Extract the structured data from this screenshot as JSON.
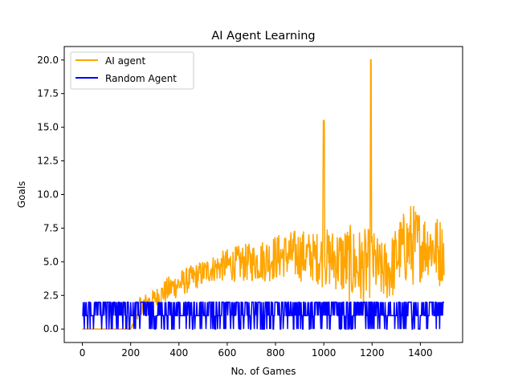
{
  "chart_data": {
    "type": "line",
    "title": "AI Agent Learning",
    "xlabel": "No. of Games",
    "ylabel": "Goals",
    "xlim": [
      -75,
      1575
    ],
    "ylim": [
      -1.0,
      21.0
    ],
    "xticks": [
      0,
      200,
      400,
      600,
      800,
      1000,
      1200,
      1400
    ],
    "yticks": [
      0.0,
      2.5,
      5.0,
      7.5,
      10.0,
      12.5,
      15.0,
      17.5,
      20.0
    ],
    "xtick_labels": [
      "0",
      "200",
      "400",
      "600",
      "800",
      "1000",
      "1200",
      "1400"
    ],
    "ytick_labels": [
      "0.0",
      "2.5",
      "5.0",
      "7.5",
      "10.0",
      "12.5",
      "15.0",
      "17.5",
      "20.0"
    ],
    "grid": false,
    "legend_position": "top-left",
    "series": [
      {
        "name": "AI agent",
        "color": "#FFA500",
        "x": [
          0,
          100,
          200,
          230,
          260,
          300,
          340,
          380,
          420,
          450,
          480,
          520,
          560,
          600,
          640,
          680,
          720,
          760,
          800,
          840,
          880,
          920,
          960,
          995,
          1000,
          1005,
          1040,
          1080,
          1120,
          1160,
          1190,
          1195,
          1200,
          1240,
          1280,
          1320,
          1360,
          1400,
          1440,
          1480,
          1499
        ],
        "y": [
          0,
          0,
          0,
          1.5,
          2.0,
          2.5,
          3.0,
          3.5,
          4.0,
          4.5,
          4.8,
          5.0,
          5.0,
          5.0,
          4.5,
          4.5,
          4.8,
          5.0,
          5.0,
          5.2,
          5.5,
          5.5,
          5.3,
          5.0,
          15.5,
          4.5,
          4.5,
          5.0,
          5.0,
          5.0,
          5.0,
          20.0,
          5.0,
          4.5,
          4.8,
          5.0,
          6.0,
          6.5,
          6.0,
          5.5,
          5.0
        ],
        "band_x": [
          200,
          240,
          300,
          360,
          420,
          480,
          540,
          600,
          660,
          720,
          780,
          840,
          900,
          960,
          1000,
          1040,
          1100,
          1160,
          1200,
          1240,
          1280,
          1320,
          1360,
          1400,
          1440,
          1480,
          1499
        ],
        "band_low": [
          0,
          1.0,
          1.5,
          2.0,
          2.5,
          3.0,
          3.5,
          3.5,
          3.5,
          3.5,
          3.5,
          3.8,
          3.5,
          3.5,
          3.0,
          3.0,
          2.0,
          1.5,
          2.5,
          2.0,
          2.0,
          3.5,
          3.0,
          3.5,
          4.0,
          3.0,
          3.8
        ],
        "band_high": [
          0,
          2.5,
          3.0,
          4.0,
          4.5,
          5.0,
          5.5,
          6.0,
          6.3,
          6.5,
          7.0,
          7.2,
          7.5,
          7.2,
          7.5,
          7.5,
          7.8,
          7.5,
          7.5,
          6.5,
          7.0,
          8.5,
          9.5,
          9.0,
          8.5,
          8.5,
          7.5
        ]
      },
      {
        "name": "Random Agent",
        "color": "#0000FF",
        "x": [
          0,
          1499
        ],
        "y": [
          0,
          2
        ],
        "band_low": 0,
        "band_high": 2
      }
    ]
  }
}
